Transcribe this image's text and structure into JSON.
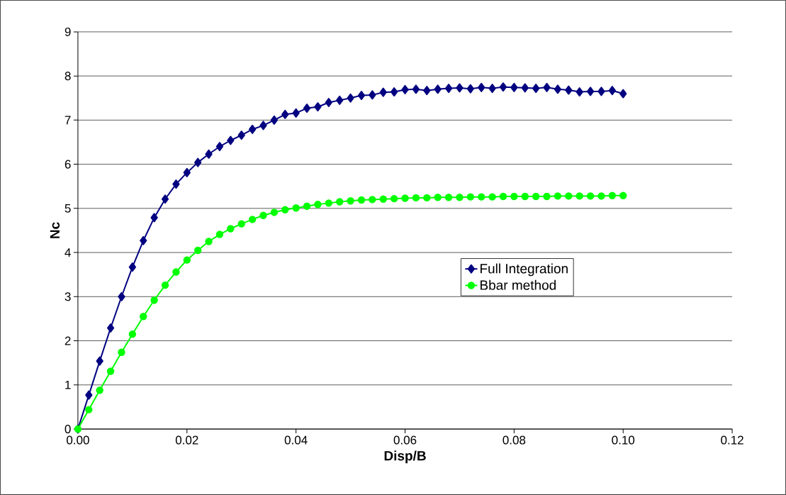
{
  "chart_data": {
    "type": "line",
    "xlabel": "Disp/B",
    "ylabel": "Nc",
    "x": [
      0,
      0.002,
      0.004,
      0.006,
      0.008,
      0.01,
      0.012,
      0.014,
      0.016,
      0.018,
      0.02,
      0.022,
      0.024,
      0.026,
      0.028,
      0.03,
      0.032,
      0.034,
      0.036,
      0.038,
      0.04,
      0.042,
      0.044,
      0.046,
      0.048,
      0.05,
      0.052,
      0.054,
      0.056,
      0.058,
      0.06,
      0.062,
      0.064,
      0.066,
      0.068,
      0.07,
      0.072,
      0.074,
      0.076,
      0.078,
      0.08,
      0.082,
      0.084,
      0.086,
      0.088,
      0.09,
      0.092,
      0.094,
      0.096,
      0.098,
      0.1
    ],
    "series": [
      {
        "name": "Full Integration",
        "color": "#000080",
        "marker": "diamond",
        "values": [
          0,
          0.77,
          1.54,
          2.29,
          3.0,
          3.67,
          4.27,
          4.79,
          5.21,
          5.55,
          5.81,
          6.04,
          6.23,
          6.4,
          6.54,
          6.66,
          6.79,
          6.88,
          7.0,
          7.13,
          7.16,
          7.27,
          7.3,
          7.4,
          7.45,
          7.5,
          7.56,
          7.57,
          7.63,
          7.64,
          7.69,
          7.7,
          7.67,
          7.7,
          7.72,
          7.73,
          7.71,
          7.74,
          7.72,
          7.75,
          7.74,
          7.73,
          7.72,
          7.74,
          7.7,
          7.68,
          7.64,
          7.65,
          7.65,
          7.67,
          7.6
        ]
      },
      {
        "name": "Bbar method",
        "color": "#00ff00",
        "marker": "circle",
        "values": [
          0,
          0.44,
          0.88,
          1.31,
          1.74,
          2.15,
          2.55,
          2.92,
          3.26,
          3.56,
          3.83,
          4.05,
          4.25,
          4.41,
          4.54,
          4.65,
          4.75,
          4.84,
          4.91,
          4.97,
          5.01,
          5.05,
          5.09,
          5.12,
          5.15,
          5.17,
          5.19,
          5.2,
          5.21,
          5.22,
          5.23,
          5.24,
          5.24,
          5.25,
          5.25,
          5.25,
          5.26,
          5.26,
          5.26,
          5.27,
          5.27,
          5.27,
          5.27,
          5.27,
          5.28,
          5.28,
          5.28,
          5.28,
          5.28,
          5.29,
          5.29
        ]
      }
    ],
    "xlim": [
      0,
      0.12
    ],
    "ylim": [
      0,
      9
    ],
    "xticks": [
      {
        "value": 0,
        "label": "0.00"
      },
      {
        "value": 0.02,
        "label": "0.02"
      },
      {
        "value": 0.04,
        "label": "0.04"
      },
      {
        "value": 0.06,
        "label": "0.06"
      },
      {
        "value": 0.08,
        "label": "0.08"
      },
      {
        "value": 0.1,
        "label": "0.10"
      },
      {
        "value": 0.12,
        "label": "0.12"
      }
    ],
    "yticks": [
      0,
      1,
      2,
      3,
      4,
      5,
      6,
      7,
      8,
      9
    ],
    "grid": "y",
    "legend": "right",
    "line_style": "solid"
  }
}
